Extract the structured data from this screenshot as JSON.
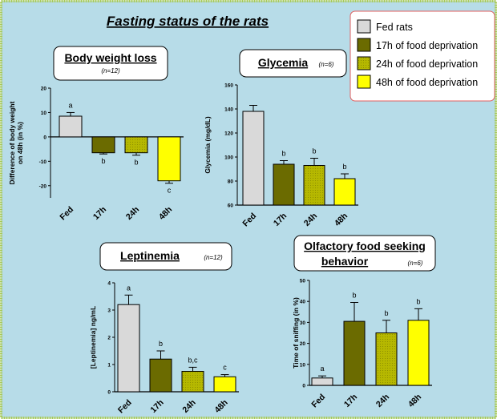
{
  "figure": {
    "title": "Fasting status of the rats",
    "background": "#b7dce8",
    "border_color": "#a6c95a"
  },
  "legend": {
    "placement": "top-right",
    "items": [
      {
        "label": "Fed rats",
        "color": "#d9d9d9"
      },
      {
        "label": "17h of food deprivation",
        "color": "#6b6b00"
      },
      {
        "label": "24h of food deprivation",
        "color": "#b6b800"
      },
      {
        "label": "48h of food deprivation",
        "color": "#ffff00"
      }
    ]
  },
  "chart_data": [
    {
      "type": "bar",
      "title": "Body weight loss",
      "subtitle": "(n=12)",
      "ylabel": "Difference of body weight on 48h (in %)",
      "categories": [
        "Fed",
        "17h",
        "24h",
        "48h"
      ],
      "values": [
        8.5,
        -6.5,
        -6.5,
        -18
      ],
      "errors": [
        1.5,
        0.5,
        1.0,
        1.0
      ],
      "letters": [
        "a",
        "b",
        "b",
        "c"
      ],
      "ylim": [
        -25,
        20
      ],
      "yticks": [
        -20,
        -10,
        0,
        10,
        20
      ]
    },
    {
      "type": "bar",
      "title": "Glycemia",
      "subtitle": "(n=6)",
      "ylabel": "Glycemia (mg/dL)",
      "categories": [
        "Fed",
        "17h",
        "24h",
        "48h"
      ],
      "values": [
        138,
        94,
        93,
        82
      ],
      "errors": [
        5,
        3,
        6,
        4
      ],
      "letters": [
        "",
        "b",
        "b",
        "b"
      ],
      "ylim": [
        60,
        160
      ],
      "yticks": [
        60,
        80,
        100,
        120,
        140,
        160
      ]
    },
    {
      "type": "bar",
      "title": "Leptinemia",
      "subtitle": "(n=12)",
      "ylabel": "[Leptinemia] ng/mL",
      "categories": [
        "Fed",
        "17h",
        "24h",
        "48h"
      ],
      "values": [
        3.2,
        1.2,
        0.75,
        0.55
      ],
      "errors": [
        0.35,
        0.3,
        0.15,
        0.08
      ],
      "letters": [
        "a",
        "b",
        "b,c",
        "c"
      ],
      "ylim": [
        0,
        4
      ],
      "yticks": [
        0,
        1,
        2,
        3,
        4
      ]
    },
    {
      "type": "bar",
      "title": "Olfactory food seeking behavior",
      "subtitle": "(n=6)",
      "ylabel": "Time of sniffing (in %)",
      "categories": [
        "Fed",
        "17h",
        "24h",
        "48h"
      ],
      "values": [
        3.5,
        30.5,
        25,
        31
      ],
      "errors": [
        1,
        9,
        6,
        5.5
      ],
      "letters": [
        "a",
        "b",
        "b",
        "b"
      ],
      "ylim": [
        0,
        50
      ],
      "yticks": [
        0,
        10,
        20,
        30,
        40,
        50
      ]
    }
  ]
}
